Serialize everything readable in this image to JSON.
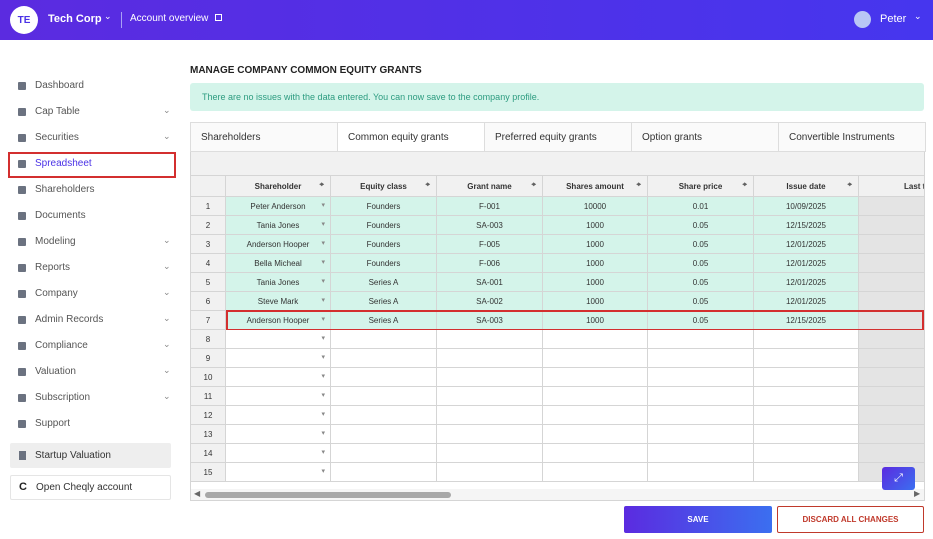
{
  "header": {
    "initials": "TE",
    "company": "Tech Corp",
    "link": "Account overview",
    "user": "Peter"
  },
  "sidebar": {
    "items": [
      {
        "label": "Dashboard",
        "expandable": false
      },
      {
        "label": "Cap Table",
        "expandable": true
      },
      {
        "label": "Securities",
        "expandable": true
      },
      {
        "label": "Spreadsheet",
        "expandable": false,
        "active": true
      },
      {
        "label": "Shareholders",
        "expandable": false
      },
      {
        "label": "Documents",
        "expandable": false
      },
      {
        "label": "Modeling",
        "expandable": true
      },
      {
        "label": "Reports",
        "expandable": true
      },
      {
        "label": "Company",
        "expandable": true
      },
      {
        "label": "Admin Records",
        "expandable": true
      },
      {
        "label": "Compliance",
        "expandable": true
      },
      {
        "label": "Valuation",
        "expandable": true
      },
      {
        "label": "Subscription",
        "expandable": true
      },
      {
        "label": "Support",
        "expandable": false
      }
    ],
    "startup_valuation": "Startup Valuation",
    "open_account": "Open Cheqly account"
  },
  "page": {
    "title": "MANAGE COMPANY COMMON EQUITY GRANTS",
    "notice": "There are no issues with the data entered. You can now save to the company profile.",
    "tabs": [
      "Shareholders",
      "Common equity grants",
      "Preferred equity grants",
      "Option grants",
      "Convertible Instruments"
    ],
    "active_tab": 1
  },
  "table": {
    "columns": [
      "Shareholder",
      "Equity class",
      "Grant name",
      "Shares amount",
      "Share price",
      "Issue date",
      "Last t"
    ],
    "row_numbers": [
      1,
      2,
      3,
      4,
      5,
      6,
      7,
      8,
      9,
      10,
      11,
      12,
      13,
      14,
      15
    ],
    "rows": [
      [
        "Peter Anderson",
        "Founders",
        "F-001",
        10000,
        0.01,
        "10/09/2025"
      ],
      [
        "Tania Jones",
        "Founders",
        "SA-003",
        1000,
        0.05,
        "12/15/2025"
      ],
      [
        "Anderson Hooper",
        "Founders",
        "F-005",
        1000,
        0.05,
        "12/01/2025"
      ],
      [
        "Bella Micheal",
        "Founders",
        "F-006",
        1000,
        0.05,
        "12/01/2025"
      ],
      [
        "Tania Jones",
        "Series A",
        "SA-001",
        1000,
        0.05,
        "12/01/2025"
      ],
      [
        "Steve Mark",
        "Series A",
        "SA-002",
        1000,
        0.05,
        "12/01/2025"
      ],
      [
        "Anderson Hooper",
        "Series A",
        "SA-003",
        1000,
        0.05,
        "12/15/2025"
      ]
    ],
    "highlighted_row": 6
  },
  "buttons": {
    "save": "SAVE",
    "discard": "DISCARD ALL CHANGES"
  }
}
